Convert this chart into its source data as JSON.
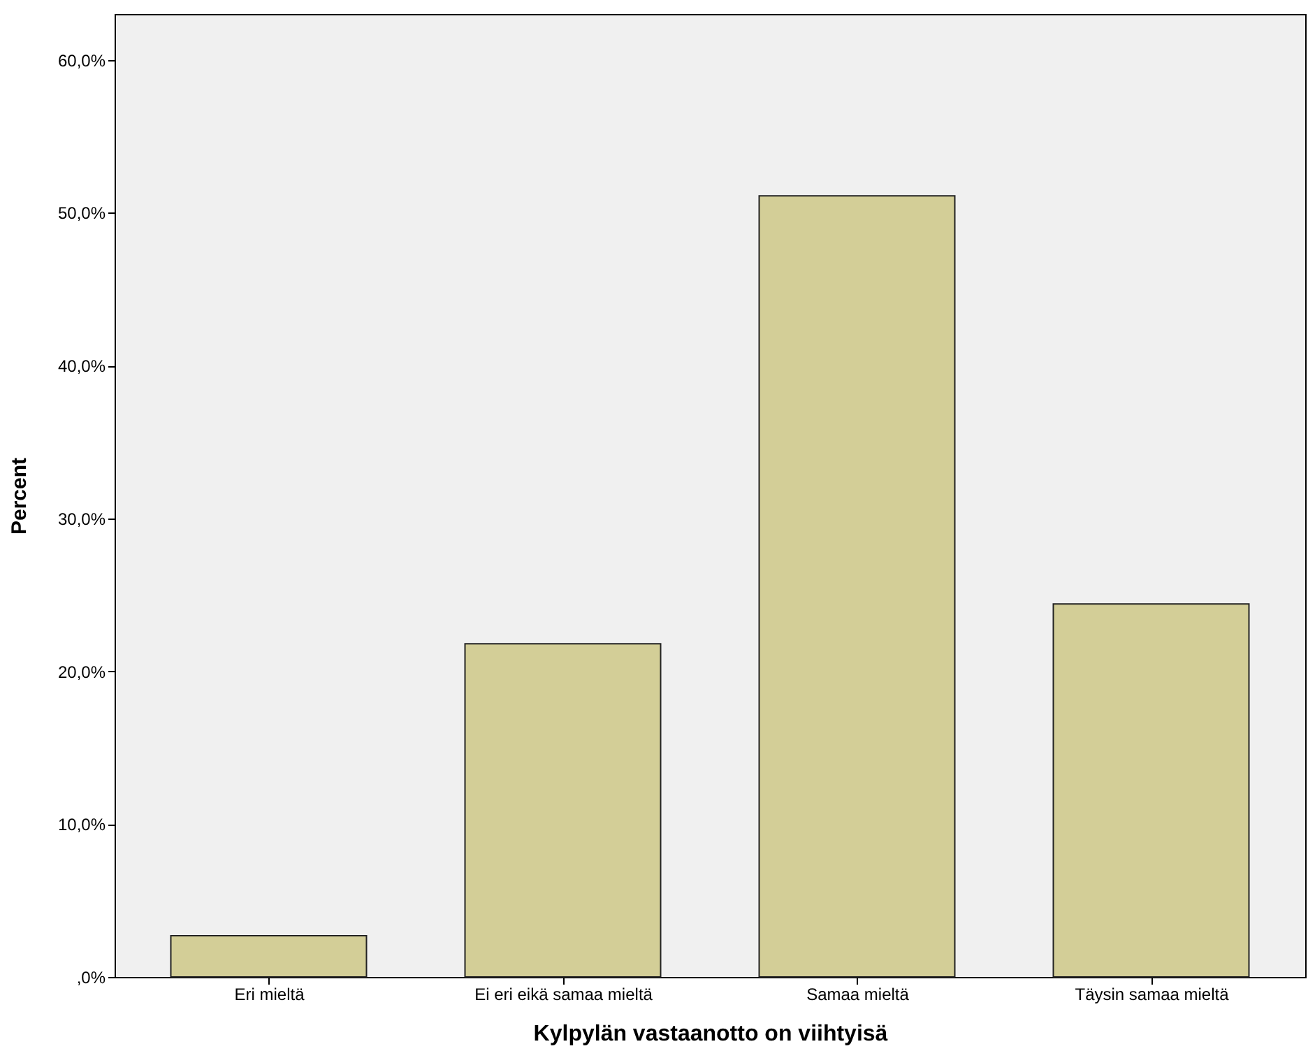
{
  "chart_data": {
    "type": "bar",
    "categories": [
      "Eri mieltä",
      "Ei eri eikä samaa mieltä",
      "Samaa mieltä",
      "Täysin samaa mieltä"
    ],
    "values": [
      2.7,
      21.8,
      51.1,
      24.4
    ],
    "color": "#d3ce97",
    "xlabel": "Kylpylän vastaanotto on viihtyisä",
    "ylabel": "Percent",
    "ylim": [
      0,
      63
    ],
    "yticks": [
      {
        "value": 0,
        "label": ",0%"
      },
      {
        "value": 10,
        "label": "10,0%"
      },
      {
        "value": 20,
        "label": "20,0%"
      },
      {
        "value": 30,
        "label": "30,0%"
      },
      {
        "value": 40,
        "label": "40,0%"
      },
      {
        "value": 50,
        "label": "50,0%"
      },
      {
        "value": 60,
        "label": "60,0%"
      }
    ],
    "grid": false
  }
}
